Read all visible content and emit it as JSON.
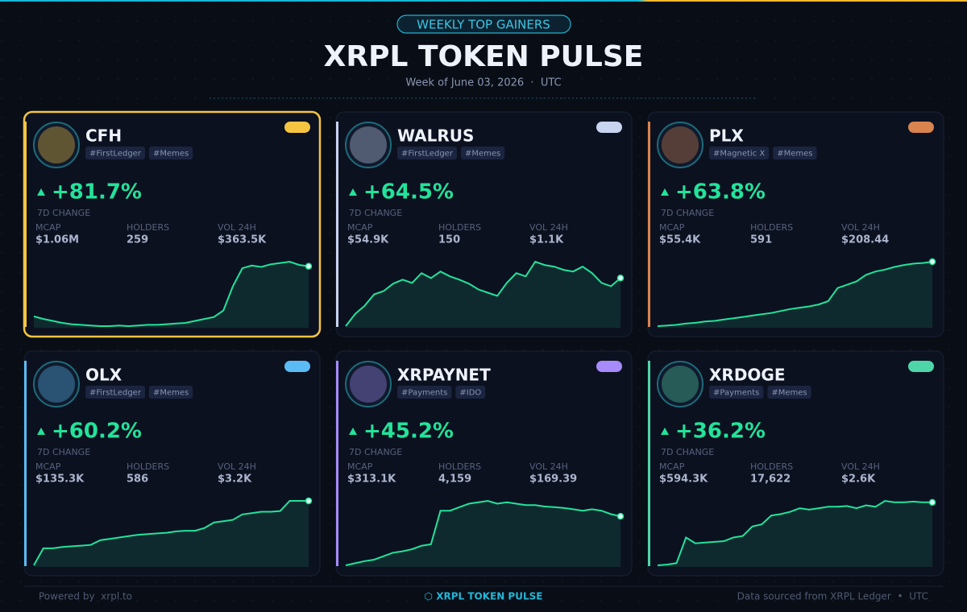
{
  "header": {
    "badge": "WEEKLY TOP GAINERS",
    "title": "XRPL TOKEN PULSE",
    "subtitle": "Week of June 03, 2026  ·  UTC"
  },
  "cards": [
    {
      "name": "CFH",
      "tags": [
        "#FirstLedger",
        "#Memes"
      ],
      "change": "+81.7%",
      "change_label": "7D CHANGE",
      "accent": "#f5c542",
      "highlight": true,
      "stats": [
        {
          "label": "MCAP",
          "value": "$1.06M"
        },
        {
          "label": "HOLDERS",
          "value": "259"
        },
        {
          "label": "VOL 24H",
          "value": "$363.5K"
        }
      ],
      "sparkline": [
        16,
        12,
        9,
        6,
        4,
        3,
        2,
        1,
        1,
        2,
        1,
        2,
        3,
        3,
        4,
        5,
        6,
        9,
        12,
        15,
        25,
        62,
        90,
        94,
        92,
        96,
        98,
        100,
        95,
        93
      ]
    },
    {
      "name": "WALRUS",
      "tags": [
        "#FirstLedger",
        "#Memes"
      ],
      "change": "+64.5%",
      "change_label": "7D CHANGE",
      "accent": "#c8d4f0",
      "highlight": false,
      "stats": [
        {
          "label": "MCAP",
          "value": "$54.9K"
        },
        {
          "label": "HOLDERS",
          "value": "150"
        },
        {
          "label": "VOL 24H",
          "value": "$1.1K"
        }
      ],
      "sparkline": [
        3,
        18,
        28,
        42,
        46,
        55,
        60,
        56,
        68,
        62,
        70,
        64,
        60,
        55,
        48,
        44,
        40,
        56,
        68,
        64,
        82,
        78,
        76,
        72,
        70,
        76,
        68,
        56,
        52,
        62
      ]
    },
    {
      "name": "PLX",
      "tags": [
        "#Magnetic X",
        "#Memes"
      ],
      "change": "+63.8%",
      "change_label": "7D CHANGE",
      "accent": "#d9834f",
      "highlight": false,
      "stats": [
        {
          "label": "MCAP",
          "value": "$55.4K"
        },
        {
          "label": "HOLDERS",
          "value": "591"
        },
        {
          "label": "VOL 24H",
          "value": "$208.44"
        }
      ],
      "sparkline": [
        2,
        3,
        4,
        6,
        7,
        9,
        10,
        12,
        14,
        16,
        18,
        20,
        22,
        25,
        28,
        30,
        32,
        35,
        40,
        60,
        65,
        70,
        80,
        85,
        88,
        92,
        95,
        97,
        98,
        100
      ]
    },
    {
      "name": "OLX",
      "tags": [
        "#FirstLedger",
        "#Memes"
      ],
      "change": "+60.2%",
      "change_label": "7D CHANGE",
      "accent": "#5bbcf5",
      "highlight": false,
      "stats": [
        {
          "label": "MCAP",
          "value": "$135.3K"
        },
        {
          "label": "HOLDERS",
          "value": "586"
        },
        {
          "label": "VOL 24H",
          "value": "$3.2K"
        }
      ],
      "sparkline": [
        5,
        30,
        30,
        32,
        33,
        34,
        35,
        42,
        44,
        46,
        48,
        50,
        51,
        52,
        53,
        55,
        56,
        56,
        60,
        68,
        70,
        72,
        80,
        82,
        84,
        84,
        85,
        100,
        100,
        100
      ]
    },
    {
      "name": "XRPAYNET",
      "tags": [
        "#Payments",
        "#IDO"
      ],
      "change": "+45.2%",
      "change_label": "7D CHANGE",
      "accent": "#a78bfa",
      "highlight": false,
      "stats": [
        {
          "label": "MCAP",
          "value": "$313.1K"
        },
        {
          "label": "HOLDERS",
          "value": "4,159"
        },
        {
          "label": "VOL 24H",
          "value": "$169.39"
        }
      ],
      "sparkline": [
        2,
        5,
        8,
        10,
        15,
        20,
        22,
        25,
        30,
        32,
        80,
        80,
        85,
        90,
        92,
        94,
        90,
        92,
        90,
        88,
        88,
        86,
        85,
        84,
        82,
        80,
        82,
        80,
        75,
        72
      ]
    },
    {
      "name": "XRDOGE",
      "tags": [
        "#Payments",
        "#Memes"
      ],
      "change": "+36.2%",
      "change_label": "7D CHANGE",
      "accent": "#4fd6a8",
      "highlight": false,
      "stats": [
        {
          "label": "MCAP",
          "value": "$594.3K"
        },
        {
          "label": "HOLDERS",
          "value": "17,622"
        },
        {
          "label": "VOL 24H",
          "value": "$2.6K"
        }
      ],
      "sparkline": [
        2,
        3,
        5,
        40,
        32,
        33,
        34,
        35,
        40,
        42,
        55,
        58,
        70,
        72,
        75,
        80,
        78,
        80,
        82,
        82,
        83,
        80,
        84,
        82,
        90,
        88,
        88,
        89,
        88,
        88
      ]
    }
  ],
  "footer": {
    "left": "Powered by  xrpl.to",
    "center": "⬡ XRPL TOKEN PULSE",
    "right": "Data sourced from XRPL Ledger  •  UTC"
  }
}
